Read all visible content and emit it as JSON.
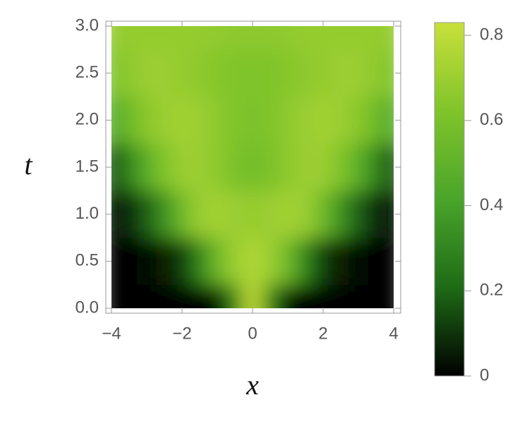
{
  "chart_data": {
    "type": "heatmap",
    "xlabel": "x",
    "ylabel": "t",
    "x": [
      -4,
      -3.5,
      -3,
      -2.5,
      -2,
      -1.5,
      -1,
      -0.5,
      0,
      0.5,
      1,
      1.5,
      2,
      2.5,
      3,
      3.5,
      4
    ],
    "y": [
      0,
      0.5,
      1,
      1.5,
      2,
      2.5,
      3
    ],
    "values": [
      [
        0,
        0,
        0,
        0.01,
        0.01,
        0.01,
        0.02,
        0.3,
        0.82,
        0.3,
        0.02,
        0.01,
        0.01,
        0.01,
        0,
        0,
        0
      ],
      [
        0,
        0.01,
        0.02,
        0.05,
        0.12,
        0.3,
        0.55,
        0.7,
        0.76,
        0.7,
        0.55,
        0.3,
        0.12,
        0.05,
        0.02,
        0.01,
        0
      ],
      [
        0.03,
        0.08,
        0.18,
        0.35,
        0.55,
        0.7,
        0.72,
        0.7,
        0.68,
        0.7,
        0.72,
        0.7,
        0.55,
        0.35,
        0.18,
        0.08,
        0.03
      ],
      [
        0.15,
        0.3,
        0.48,
        0.62,
        0.7,
        0.7,
        0.66,
        0.6,
        0.58,
        0.6,
        0.66,
        0.7,
        0.7,
        0.62,
        0.48,
        0.3,
        0.15
      ],
      [
        0.45,
        0.55,
        0.65,
        0.7,
        0.72,
        0.7,
        0.66,
        0.62,
        0.6,
        0.62,
        0.66,
        0.7,
        0.72,
        0.7,
        0.65,
        0.55,
        0.45
      ],
      [
        0.62,
        0.66,
        0.7,
        0.7,
        0.68,
        0.66,
        0.64,
        0.62,
        0.62,
        0.62,
        0.64,
        0.66,
        0.68,
        0.7,
        0.7,
        0.66,
        0.62
      ],
      [
        0.68,
        0.68,
        0.68,
        0.68,
        0.68,
        0.68,
        0.67,
        0.66,
        0.66,
        0.66,
        0.67,
        0.68,
        0.68,
        0.68,
        0.68,
        0.68,
        0.68
      ]
    ],
    "xlim": [
      -4,
      4
    ],
    "ylim": [
      0,
      3
    ],
    "xticks": [
      {
        "value": -4,
        "label": "−4"
      },
      {
        "value": -2,
        "label": "−2"
      },
      0,
      2,
      4
    ],
    "yticks": [
      {
        "value": 0,
        "label": "0.0"
      },
      0.5,
      {
        "value": 1,
        "label": "1.0"
      },
      1.5,
      {
        "value": 2,
        "label": "2.0"
      },
      2.5,
      {
        "value": 3,
        "label": "3.0"
      }
    ],
    "clim": [
      0,
      0.83
    ],
    "cticks": [
      0,
      0.2,
      0.4,
      0.6,
      0.8
    ],
    "colormap": [
      "#000000",
      "#1e6b16",
      "#4aa52a",
      "#80c42a",
      "#c8e03a"
    ]
  }
}
